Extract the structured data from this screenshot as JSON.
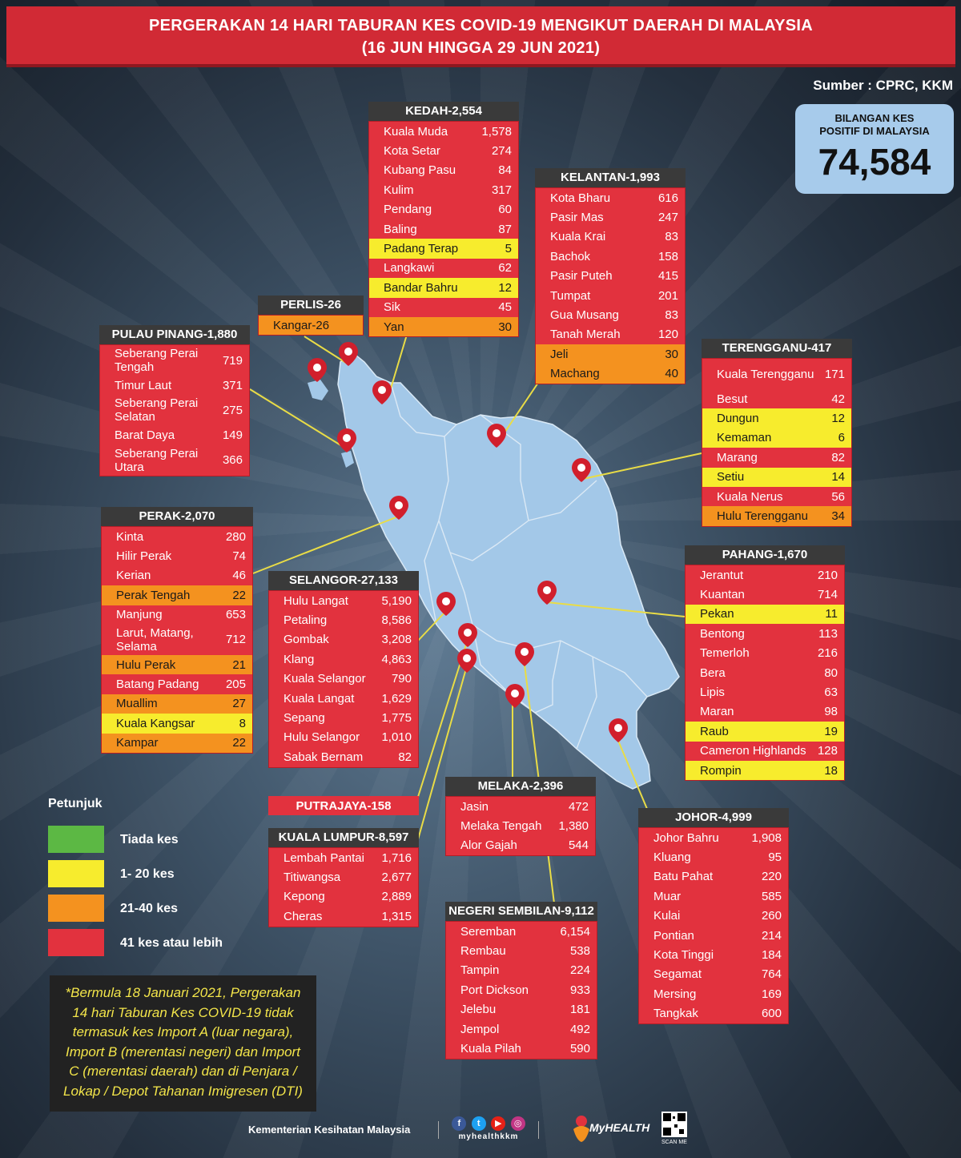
{
  "header": {
    "line1": "PERGERAKAN 14 HARI TABURAN KES COVID-19 MENGIKUT DAERAH DI MALAYSIA",
    "line2": "(16 JUN HINGGA 29 JUN 2021)"
  },
  "source": "Sumber : CPRC, KKM",
  "total": {
    "label_line1": "BILANGAN KES",
    "label_line2": "POSITIF DI MALAYSIA",
    "value": "74,584"
  },
  "colors": {
    "none": "#5cb844",
    "low": "#f7ec2d",
    "mid": "#f4921f",
    "high": "#e2323e",
    "map_land": "#a3c8e8",
    "pin": "#d11f2c"
  },
  "states": {
    "kedah": {
      "title": "KEDAH-2,554",
      "rows": [
        {
          "n": "Kuala Muda",
          "v": "1,578",
          "c": "red"
        },
        {
          "n": "Kota Setar",
          "v": "274",
          "c": "red"
        },
        {
          "n": "Kubang Pasu",
          "v": "84",
          "c": "red"
        },
        {
          "n": "Kulim",
          "v": "317",
          "c": "red"
        },
        {
          "n": "Pendang",
          "v": "60",
          "c": "red"
        },
        {
          "n": "Baling",
          "v": "87",
          "c": "red"
        },
        {
          "n": "Padang Terap",
          "v": "5",
          "c": "yellow"
        },
        {
          "n": "Langkawi",
          "v": "62",
          "c": "red"
        },
        {
          "n": "Bandar Bahru",
          "v": "12",
          "c": "yellow"
        },
        {
          "n": "Sik",
          "v": "45",
          "c": "red"
        },
        {
          "n": "Yan",
          "v": "30",
          "c": "orange"
        }
      ]
    },
    "kelantan": {
      "title": "KELANTAN-1,993",
      "rows": [
        {
          "n": "Kota Bharu",
          "v": "616",
          "c": "red"
        },
        {
          "n": "Pasir Mas",
          "v": "247",
          "c": "red"
        },
        {
          "n": "Kuala Krai",
          "v": "83",
          "c": "red"
        },
        {
          "n": "Bachok",
          "v": "158",
          "c": "red"
        },
        {
          "n": "Pasir Puteh",
          "v": "415",
          "c": "red"
        },
        {
          "n": "Tumpat",
          "v": "201",
          "c": "red"
        },
        {
          "n": "Gua Musang",
          "v": "83",
          "c": "red"
        },
        {
          "n": "Tanah Merah",
          "v": "120",
          "c": "red"
        },
        {
          "n": "Jeli",
          "v": "30",
          "c": "orange"
        },
        {
          "n": "Machang",
          "v": "40",
          "c": "orange"
        }
      ]
    },
    "perlis": {
      "title": "PERLIS-26",
      "rows": [
        {
          "n": "Kangar-26",
          "v": "",
          "c": "orange"
        }
      ]
    },
    "pulau_pinang": {
      "title": "PULAU PINANG-1,880",
      "rows": [
        {
          "n": "Seberang Perai Tengah",
          "v": "719",
          "c": "red",
          "tall": true
        },
        {
          "n": "Timur Laut",
          "v": "371",
          "c": "red"
        },
        {
          "n": "Seberang Perai Selatan",
          "v": "275",
          "c": "red",
          "tall": true
        },
        {
          "n": "Barat Daya",
          "v": "149",
          "c": "red"
        },
        {
          "n": "Seberang Perai Utara",
          "v": "366",
          "c": "red",
          "tall": true
        }
      ]
    },
    "terengganu": {
      "title": "TERENGGANU-417",
      "rows": [
        {
          "n": "Kuala Terengganu",
          "v": "171",
          "c": "red",
          "tall": true
        },
        {
          "n": "Besut",
          "v": "42",
          "c": "red"
        },
        {
          "n": "Dungun",
          "v": "12",
          "c": "yellow"
        },
        {
          "n": "Kemaman",
          "v": "6",
          "c": "yellow"
        },
        {
          "n": "Marang",
          "v": "82",
          "c": "red"
        },
        {
          "n": "Setiu",
          "v": "14",
          "c": "yellow"
        },
        {
          "n": "Kuala Nerus",
          "v": "56",
          "c": "red"
        },
        {
          "n": "Hulu Terengganu",
          "v": "34",
          "c": "orange"
        }
      ]
    },
    "perak": {
      "title": "PERAK-2,070",
      "rows": [
        {
          "n": "Kinta",
          "v": "280",
          "c": "red"
        },
        {
          "n": "Hilir Perak",
          "v": "74",
          "c": "red"
        },
        {
          "n": "Kerian",
          "v": "46",
          "c": "red"
        },
        {
          "n": "Perak Tengah",
          "v": "22",
          "c": "orange"
        },
        {
          "n": "Manjung",
          "v": "653",
          "c": "red"
        },
        {
          "n": "Larut, Matang, Selama",
          "v": "712",
          "c": "red",
          "tall": true
        },
        {
          "n": "Hulu Perak",
          "v": "21",
          "c": "orange"
        },
        {
          "n": "Batang Padang",
          "v": "205",
          "c": "red"
        },
        {
          "n": "Muallim",
          "v": "27",
          "c": "orange"
        },
        {
          "n": "Kuala Kangsar",
          "v": "8",
          "c": "yellow"
        },
        {
          "n": "Kampar",
          "v": "22",
          "c": "orange"
        }
      ]
    },
    "selangor": {
      "title": "SELANGOR-27,133",
      "rows": [
        {
          "n": "Hulu Langat",
          "v": "5,190",
          "c": "red"
        },
        {
          "n": "Petaling",
          "v": "8,586",
          "c": "red"
        },
        {
          "n": "Gombak",
          "v": "3,208",
          "c": "red"
        },
        {
          "n": "Klang",
          "v": "4,863",
          "c": "red"
        },
        {
          "n": "Kuala Selangor",
          "v": "790",
          "c": "red"
        },
        {
          "n": "Kuala Langat",
          "v": "1,629",
          "c": "red"
        },
        {
          "n": "Sepang",
          "v": "1,775",
          "c": "red"
        },
        {
          "n": "Hulu Selangor",
          "v": "1,010",
          "c": "red"
        },
        {
          "n": "Sabak Bernam",
          "v": "82",
          "c": "red"
        }
      ]
    },
    "pahang": {
      "title": "PAHANG-1,670",
      "rows": [
        {
          "n": "Jerantut",
          "v": "210",
          "c": "red"
        },
        {
          "n": "Kuantan",
          "v": "714",
          "c": "red"
        },
        {
          "n": "Pekan",
          "v": "11",
          "c": "yellow"
        },
        {
          "n": "Bentong",
          "v": "113",
          "c": "red"
        },
        {
          "n": "Temerloh",
          "v": "216",
          "c": "red"
        },
        {
          "n": "Bera",
          "v": "80",
          "c": "red"
        },
        {
          "n": "Lipis",
          "v": "63",
          "c": "red"
        },
        {
          "n": "Maran",
          "v": "98",
          "c": "red"
        },
        {
          "n": "Raub",
          "v": "19",
          "c": "yellow"
        },
        {
          "n": "Cameron Highlands",
          "v": "128",
          "c": "red"
        },
        {
          "n": "Rompin",
          "v": "18",
          "c": "yellow"
        }
      ]
    },
    "putrajaya": {
      "title": "PUTRAJAYA-158"
    },
    "kuala_lumpur": {
      "title": "KUALA LUMPUR-8,597",
      "rows": [
        {
          "n": "Lembah Pantai",
          "v": "1,716",
          "c": "red"
        },
        {
          "n": "Titiwangsa",
          "v": "2,677",
          "c": "red"
        },
        {
          "n": "Kepong",
          "v": "2,889",
          "c": "red"
        },
        {
          "n": "Cheras",
          "v": "1,315",
          "c": "red"
        }
      ]
    },
    "melaka": {
      "title": "MELAKA-2,396",
      "rows": [
        {
          "n": "Jasin",
          "v": "472",
          "c": "red"
        },
        {
          "n": "Melaka Tengah",
          "v": "1,380",
          "c": "red"
        },
        {
          "n": "Alor Gajah",
          "v": "544",
          "c": "red"
        }
      ]
    },
    "negeri_sembilan": {
      "title": "NEGERI SEMBILAN-9,112",
      "rows": [
        {
          "n": "Seremban",
          "v": "6,154",
          "c": "red"
        },
        {
          "n": "Rembau",
          "v": "538",
          "c": "red"
        },
        {
          "n": "Tampin",
          "v": "224",
          "c": "red"
        },
        {
          "n": "Port Dickson",
          "v": "933",
          "c": "red"
        },
        {
          "n": "Jelebu",
          "v": "181",
          "c": "red"
        },
        {
          "n": "Jempol",
          "v": "492",
          "c": "red"
        },
        {
          "n": "Kuala Pilah",
          "v": "590",
          "c": "red"
        }
      ]
    },
    "johor": {
      "title": "JOHOR-4,999",
      "rows": [
        {
          "n": "Johor Bahru",
          "v": "1,908",
          "c": "red"
        },
        {
          "n": "Kluang",
          "v": "95",
          "c": "red"
        },
        {
          "n": "Batu Pahat",
          "v": "220",
          "c": "red"
        },
        {
          "n": "Muar",
          "v": "585",
          "c": "red"
        },
        {
          "n": "Kulai",
          "v": "260",
          "c": "red"
        },
        {
          "n": "Pontian",
          "v": "214",
          "c": "red"
        },
        {
          "n": "Kota Tinggi",
          "v": "184",
          "c": "red"
        },
        {
          "n": "Segamat",
          "v": "764",
          "c": "red"
        },
        {
          "n": "Mersing",
          "v": "169",
          "c": "red"
        },
        {
          "n": "Tangkak",
          "v": "600",
          "c": "red"
        }
      ]
    }
  },
  "legend": {
    "title": "Petunjuk",
    "items": [
      {
        "label": "Tiada kes",
        "color": "#5cb844"
      },
      {
        "label": "1- 20 kes",
        "color": "#f7ec2d"
      },
      {
        "label": "21-40 kes",
        "color": "#f4921f"
      },
      {
        "label": "41 kes atau lebih",
        "color": "#e2323e"
      }
    ]
  },
  "note": "*Bermula 18 Januari 2021, Pergerakan 14 hari Taburan Kes COVID-19 tidak termasuk kes Import A (luar negara), Import B (merentasi negeri) dan Import C (merentasi daerah) dan di Penjara / Lokap / Depot Tahanan Imigresen (DTI)",
  "footer": {
    "ministry": "Kementerian Kesihatan Malaysia",
    "social_handle": "myhealthkkm",
    "myhealth": "MyHEALTH",
    "qr_label": "SCAN ME"
  }
}
